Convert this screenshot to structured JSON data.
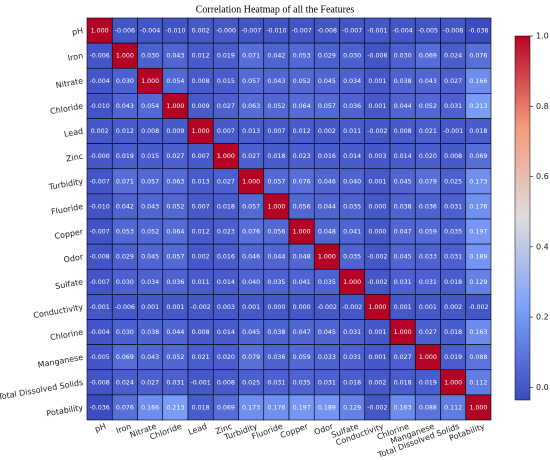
{
  "chart_data": {
    "type": "heatmap",
    "title": "Correlation Heatmap of all the Features",
    "colormap": "coolwarm",
    "categories": [
      "pH",
      "Iron",
      "Nitrate",
      "Chloride",
      "Lead",
      "Zinc",
      "Turbidity",
      "Fluoride",
      "Copper",
      "Odor",
      "Sulfate",
      "Conductivity",
      "Chlorine",
      "Manganese",
      "Total Dissolved Solids",
      "Potability"
    ],
    "values": [
      [
        1.0,
        -0.006,
        -0.004,
        -0.01,
        0.002,
        0,
        -0.007,
        -0.01,
        -0.007,
        -0.008,
        -0.007,
        -0.001,
        -0.004,
        -0.005,
        -0.008,
        -0.036
      ],
      [
        -0.006,
        1.0,
        0.03,
        0.043,
        0.012,
        0.019,
        0.071,
        0.042,
        0.053,
        0.029,
        0.03,
        -0.006,
        0.03,
        0.069,
        0.024,
        0.076
      ],
      [
        -0.004,
        0.03,
        1.0,
        0.054,
        0.008,
        0.015,
        0.057,
        0.043,
        0.052,
        0.045,
        0.034,
        0.001,
        0.038,
        0.043,
        0.027,
        0.166
      ],
      [
        -0.01,
        0.043,
        0.054,
        1.0,
        0.009,
        0.027,
        0.063,
        0.052,
        0.064,
        0.057,
        0.036,
        0.001,
        0.044,
        0.052,
        0.031,
        0.213
      ],
      [
        0.002,
        0.012,
        0.008,
        0.009,
        1.0,
        0.007,
        0.013,
        0.007,
        0.012,
        0.002,
        0.011,
        -0.002,
        0.008,
        0.021,
        -0.001,
        0.018
      ],
      [
        0,
        0.019,
        0.015,
        0.027,
        0.007,
        1.0,
        0.027,
        0.018,
        0.023,
        0.016,
        0.014,
        0.003,
        0.014,
        0.02,
        0.008,
        0.069
      ],
      [
        -0.007,
        0.071,
        0.057,
        0.063,
        0.013,
        0.027,
        1.0,
        0.057,
        0.076,
        0.046,
        0.04,
        0.001,
        0.045,
        0.079,
        0.025,
        0.173
      ],
      [
        -0.01,
        0.042,
        0.043,
        0.052,
        0.007,
        0.018,
        0.057,
        1.0,
        0.056,
        0.044,
        0.035,
        0,
        0.038,
        0.036,
        0.031,
        0.176
      ],
      [
        -0.007,
        0.053,
        0.052,
        0.064,
        0.012,
        0.023,
        0.076,
        0.056,
        1.0,
        0.048,
        0.041,
        0,
        0.047,
        0.059,
        0.035,
        0.197
      ],
      [
        -0.008,
        0.029,
        0.045,
        0.057,
        0.002,
        0.016,
        0.046,
        0.044,
        0.048,
        1.0,
        0.035,
        -0.002,
        0.045,
        0.033,
        0.031,
        0.189
      ],
      [
        -0.007,
        0.03,
        0.034,
        0.036,
        0.011,
        0.014,
        0.04,
        0.035,
        0.041,
        0.035,
        1.0,
        -0.002,
        0.031,
        0.031,
        0.018,
        0.129
      ],
      [
        -0.001,
        -0.006,
        0.001,
        0.001,
        -0.002,
        0.003,
        0.001,
        0,
        0,
        -0.002,
        -0.002,
        1.0,
        0.001,
        0.001,
        0.002,
        -0.002
      ],
      [
        -0.004,
        0.03,
        0.038,
        0.044,
        0.008,
        0.014,
        0.045,
        0.038,
        0.047,
        0.045,
        0.031,
        0.001,
        1.0,
        0.027,
        0.018,
        0.163
      ],
      [
        -0.005,
        0.069,
        0.043,
        0.052,
        0.021,
        0.02,
        0.079,
        0.036,
        0.059,
        0.033,
        0.031,
        0.001,
        0.027,
        1.0,
        0.019,
        0.088
      ],
      [
        -0.008,
        0.024,
        0.027,
        0.031,
        -0.001,
        0.008,
        0.025,
        0.031,
        0.035,
        0.031,
        0.018,
        0.002,
        0.018,
        0.019,
        1.0,
        0.112
      ],
      [
        -0.036,
        0.076,
        0.166,
        0.213,
        0.018,
        0.069,
        0.173,
        0.176,
        0.197,
        0.189,
        0.129,
        -0.002,
        0.163,
        0.088,
        0.112,
        1.0
      ]
    ],
    "value_labels": [
      [
        "1.000",
        "-0.006",
        "-0.004",
        "-0.010",
        "0.002",
        "-0.000",
        "-0.007",
        "-0.010",
        "-0.007",
        "-0.008",
        "-0.007",
        "-0.001",
        "-0.004",
        "-0.005",
        "-0.008",
        "-0.036"
      ],
      [
        "-0.006",
        "1.000",
        "0.030",
        "0.043",
        "0.012",
        "0.019",
        "0.071",
        "0.042",
        "0.053",
        "0.029",
        "0.030",
        "-0.006",
        "0.030",
        "0.069",
        "0.024",
        "0.076"
      ],
      [
        "-0.004",
        "0.030",
        "1.000",
        "0.054",
        "0.008",
        "0.015",
        "0.057",
        "0.043",
        "0.052",
        "0.045",
        "0.034",
        "0.001",
        "0.038",
        "0.043",
        "0.027",
        "0.166"
      ],
      [
        "-0.010",
        "0.043",
        "0.054",
        "1.000",
        "0.009",
        "0.027",
        "0.063",
        "0.052",
        "0.064",
        "0.057",
        "0.036",
        "0.001",
        "0.044",
        "0.052",
        "0.031",
        "0.213"
      ],
      [
        "0.002",
        "0.012",
        "0.008",
        "0.009",
        "1.000",
        "0.007",
        "0.013",
        "0.007",
        "0.012",
        "0.002",
        "0.011",
        "-0.002",
        "0.008",
        "0.021",
        "-0.001",
        "0.018"
      ],
      [
        "-0.000",
        "0.019",
        "0.015",
        "0.027",
        "0.007",
        "1.000",
        "0.027",
        "0.018",
        "0.023",
        "0.016",
        "0.014",
        "0.003",
        "0.014",
        "0.020",
        "0.008",
        "0.069"
      ],
      [
        "-0.007",
        "0.071",
        "0.057",
        "0.063",
        "0.013",
        "0.027",
        "1.000",
        "0.057",
        "0.076",
        "0.046",
        "0.040",
        "0.001",
        "0.045",
        "0.079",
        "0.025",
        "0.173"
      ],
      [
        "-0.010",
        "0.042",
        "0.043",
        "0.052",
        "0.007",
        "0.018",
        "0.057",
        "1.000",
        "0.056",
        "0.044",
        "0.035",
        "0.000",
        "0.038",
        "0.036",
        "0.031",
        "0.176"
      ],
      [
        "-0.007",
        "0.053",
        "0.052",
        "0.064",
        "0.012",
        "0.023",
        "0.076",
        "0.056",
        "1.000",
        "0.048",
        "0.041",
        "0.000",
        "0.047",
        "0.059",
        "0.035",
        "0.197"
      ],
      [
        "-0.008",
        "0.029",
        "0.045",
        "0.057",
        "0.002",
        "0.016",
        "0.046",
        "0.044",
        "0.048",
        "1.000",
        "0.035",
        "-0.002",
        "0.045",
        "0.033",
        "0.031",
        "0.189"
      ],
      [
        "-0.007",
        "0.030",
        "0.034",
        "0.036",
        "0.011",
        "0.014",
        "0.040",
        "0.035",
        "0.041",
        "0.035",
        "1.000",
        "-0.002",
        "0.031",
        "0.031",
        "0.018",
        "0.129"
      ],
      [
        "-0.001",
        "-0.006",
        "0.001",
        "0.001",
        "-0.002",
        "0.003",
        "0.001",
        "0.000",
        "0.000",
        "-0.002",
        "-0.002",
        "1.000",
        "0.001",
        "0.001",
        "0.002",
        "-0.002"
      ],
      [
        "-0.004",
        "0.030",
        "0.038",
        "0.044",
        "0.008",
        "0.014",
        "0.045",
        "0.038",
        "0.047",
        "0.045",
        "0.031",
        "0.001",
        "1.000",
        "0.027",
        "0.018",
        "0.163"
      ],
      [
        "-0.005",
        "0.069",
        "0.043",
        "0.052",
        "0.021",
        "0.020",
        "0.079",
        "0.036",
        "0.059",
        "0.033",
        "0.031",
        "0.001",
        "0.027",
        "1.000",
        "0.019",
        "0.088"
      ],
      [
        "-0.008",
        "0.024",
        "0.027",
        "0.031",
        "-0.001",
        "0.008",
        "0.025",
        "0.031",
        "0.035",
        "0.031",
        "0.018",
        "0.002",
        "0.018",
        "0.019",
        "1.000",
        "0.112"
      ],
      [
        "-0.036",
        "0.076",
        "0.166",
        "0.213",
        "0.018",
        "0.069",
        "0.173",
        "0.176",
        "0.197",
        "0.189",
        "0.129",
        "-0.002",
        "0.163",
        "0.088",
        "0.112",
        "1.000"
      ]
    ],
    "zlim": [
      -0.036,
      1.0
    ],
    "zticks": [
      {
        "value": 0,
        "label": "0.0"
      },
      {
        "value": 0.2,
        "label": "0.2"
      },
      {
        "value": 0.4,
        "label": "0.4"
      },
      {
        "value": 0.6,
        "label": "0.6"
      },
      {
        "value": 0.8,
        "label": "0.8"
      },
      {
        "value": 1,
        "label": "1.0"
      }
    ]
  }
}
